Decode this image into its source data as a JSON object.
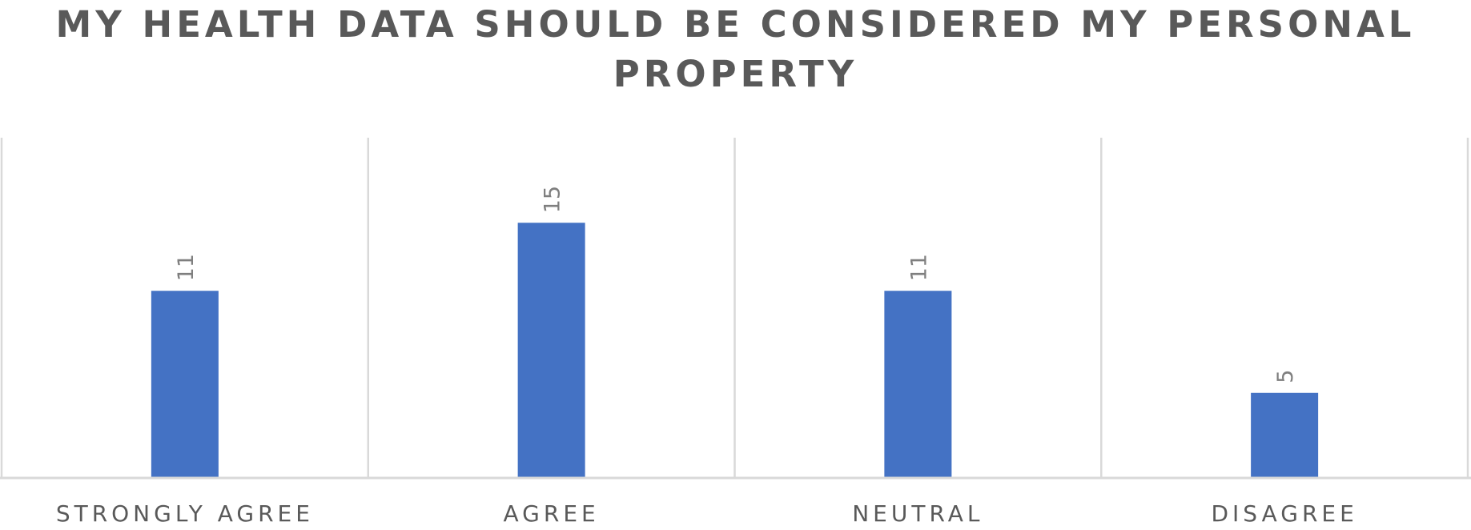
{
  "chart_data": {
    "type": "bar",
    "title": "MY HEALTH DATA SHOULD BE CONSIDERED MY PERSONAL PROPERTY",
    "categories": [
      "STRONGLY AGREE",
      "AGREE",
      "NEUTRAL",
      "DISAGREE"
    ],
    "values": [
      11,
      15,
      11,
      5
    ],
    "ylim": [
      0,
      20
    ],
    "grid": "vertical category separators",
    "legend": "none",
    "data_labels": true,
    "colors": {
      "bar": "#4472C4",
      "gridline": "#D9D9D9",
      "text": "#595959",
      "data_label": "#7F7F7F"
    }
  }
}
